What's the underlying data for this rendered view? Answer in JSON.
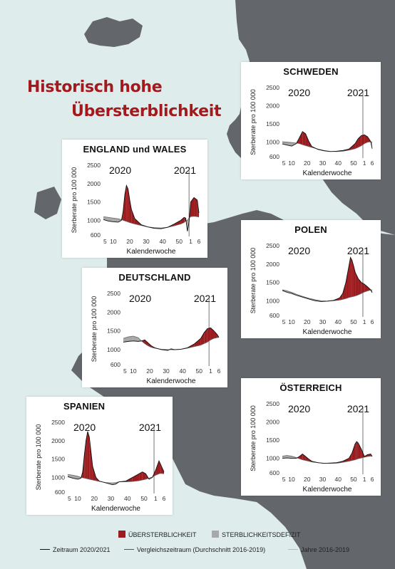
{
  "headline": {
    "line1": "Historisch hohe",
    "line2": "Übersterblichkeit"
  },
  "colors": {
    "excess": "#9b1b1e",
    "deficit": "#a8a8a8",
    "map_land": "#63676b",
    "sea": "#deedeb"
  },
  "axis": {
    "ylabel": "Sterberate pro 100 000",
    "xlabel": "Kalenderwoche",
    "year_left": "2020",
    "year_right": "2021"
  },
  "legend": {
    "excess": "ÜBERSTERBLICHKEIT",
    "deficit": "STERBLICHKEITSDEFIZIT",
    "line_current": "Zeitraum 2020/2021",
    "line_baseline": "Vergleichszeitraum (Durchschnitt 2016-2019)",
    "line_years": "Jahre 2016-2019"
  },
  "chart_data": [
    {
      "type": "area",
      "title": "SCHWEDEN",
      "x_ticks": [
        "5",
        "10",
        "20",
        "30",
        "40",
        "50",
        "1",
        "6"
      ],
      "y_ticks": [
        "2500",
        "2000",
        "1500",
        "1000",
        "600"
      ],
      "ylim": [
        600,
        2500
      ],
      "week_index": [
        1,
        4,
        7,
        10,
        12,
        14,
        16,
        18,
        20,
        24,
        28,
        32,
        36,
        40,
        44,
        48,
        50,
        52,
        54,
        56,
        58,
        59
      ],
      "series": [
        {
          "name": "Zeitraum 2020/2021",
          "values": [
            950,
            920,
            890,
            960,
            1120,
            1290,
            1230,
            1030,
            880,
            800,
            760,
            740,
            750,
            770,
            810,
            960,
            1100,
            1180,
            1200,
            1150,
            1020,
            820
          ]
        },
        {
          "name": "Vergleichszeitraum (Durchschnitt 2016-2019)",
          "values": [
            1010,
            1000,
            990,
            975,
            960,
            930,
            905,
            880,
            855,
            810,
            770,
            745,
            740,
            750,
            780,
            820,
            860,
            900,
            960,
            1000,
            1010,
            1000
          ]
        }
      ]
    },
    {
      "type": "area",
      "title": "ENGLAND und WALES",
      "x_ticks": [
        "5",
        "10",
        "20",
        "30",
        "40",
        "50",
        "1",
        "6"
      ],
      "y_ticks": [
        "2500",
        "2000",
        "1500",
        "1000",
        "600"
      ],
      "ylim": [
        600,
        2500
      ],
      "week_index": [
        1,
        4,
        7,
        10,
        12,
        13,
        14,
        15,
        16,
        17,
        18,
        20,
        24,
        28,
        32,
        36,
        40,
        44,
        48,
        50,
        51,
        52,
        53,
        54,
        56,
        58,
        59
      ],
      "series": [
        {
          "name": "Zeitraum 2020/2021",
          "values": [
            1020,
            980,
            960,
            950,
            1000,
            1250,
            1700,
            1950,
            1850,
            1550,
            1300,
            1050,
            880,
            820,
            780,
            770,
            810,
            900,
            1000,
            1080,
            1060,
            700,
            950,
            1500,
            1620,
            1550,
            1200
          ]
        },
        {
          "name": "Vergleichszeitraum (Durchschnitt 2016-2019)",
          "values": [
            1100,
            1080,
            1060,
            1040,
            1020,
            1000,
            985,
            970,
            955,
            940,
            925,
            900,
            860,
            820,
            800,
            790,
            810,
            850,
            900,
            940,
            980,
            1000,
            1060,
            1100,
            1110,
            1100,
            1090
          ]
        }
      ]
    },
    {
      "type": "area",
      "title": "POLEN",
      "x_ticks": [
        "5",
        "10",
        "20",
        "30",
        "40",
        "50",
        "1",
        "6"
      ],
      "y_ticks": [
        "2500",
        "2000",
        "1500",
        "1000",
        "600"
      ],
      "ylim": [
        600,
        2500
      ],
      "week_index": [
        1,
        4,
        7,
        10,
        14,
        18,
        22,
        26,
        30,
        34,
        38,
        40,
        42,
        44,
        45,
        46,
        47,
        48,
        50,
        52,
        54,
        56,
        58,
        59
      ],
      "series": [
        {
          "name": "Zeitraum 2020/2021",
          "values": [
            1280,
            1230,
            1200,
            1150,
            1100,
            1050,
            1000,
            980,
            990,
            1010,
            1080,
            1200,
            1500,
            1950,
            2180,
            2100,
            1950,
            1780,
            1600,
            1500,
            1450,
            1380,
            1300,
            1220
          ]
        },
        {
          "name": "Vergleichszeitraum (Durchschnitt 2016-2019)",
          "values": [
            1300,
            1270,
            1230,
            1180,
            1120,
            1070,
            1030,
            1000,
            990,
            1000,
            1020,
            1040,
            1060,
            1090,
            1100,
            1110,
            1120,
            1130,
            1160,
            1200,
            1240,
            1270,
            1290,
            1300
          ]
        }
      ]
    },
    {
      "type": "area",
      "title": "DEUTSCHLAND",
      "x_ticks": [
        "5",
        "10",
        "20",
        "30",
        "40",
        "50",
        "1",
        "6"
      ],
      "y_ticks": [
        "2500",
        "2000",
        "1500",
        "1000",
        "600"
      ],
      "ylim": [
        600,
        2500
      ],
      "week_index": [
        1,
        4,
        7,
        10,
        12,
        14,
        16,
        18,
        20,
        24,
        28,
        30,
        32,
        36,
        40,
        44,
        48,
        50,
        52,
        54,
        56,
        58,
        59
      ],
      "series": [
        {
          "name": "Zeitraum 2020/2021",
          "values": [
            1200,
            1220,
            1230,
            1220,
            1230,
            1260,
            1180,
            1100,
            1050,
            1000,
            980,
            1020,
            1000,
            1010,
            1050,
            1150,
            1300,
            1450,
            1560,
            1580,
            1500,
            1400,
            1330
          ]
        },
        {
          "name": "Vergleichszeitraum (Durchschnitt 2016-2019)",
          "values": [
            1300,
            1340,
            1360,
            1320,
            1230,
            1160,
            1100,
            1060,
            1040,
            1010,
            1000,
            1000,
            995,
            1010,
            1040,
            1080,
            1120,
            1160,
            1200,
            1260,
            1300,
            1320,
            1330
          ]
        }
      ]
    },
    {
      "type": "area",
      "title": "ÖSTERREICH",
      "x_ticks": [
        "5",
        "10",
        "20",
        "30",
        "40",
        "50",
        "1",
        "6"
      ],
      "y_ticks": [
        "2500",
        "2000",
        "1500",
        "1000",
        "600"
      ],
      "ylim": [
        600,
        2500
      ],
      "week_index": [
        1,
        4,
        7,
        10,
        12,
        14,
        16,
        18,
        20,
        24,
        28,
        32,
        36,
        40,
        44,
        46,
        48,
        49,
        50,
        52,
        54,
        56,
        58,
        59
      ],
      "series": [
        {
          "name": "Zeitraum 2020/2021",
          "values": [
            1000,
            1010,
            1000,
            1000,
            1050,
            1120,
            1050,
            980,
            920,
            880,
            860,
            870,
            880,
            920,
            1000,
            1150,
            1400,
            1460,
            1420,
            1250,
            1050,
            1100,
            1120,
            1050
          ]
        },
        {
          "name": "Vergleichszeitraum (Durchschnitt 2016-2019)",
          "values": [
            1060,
            1080,
            1060,
            1020,
            990,
            960,
            940,
            920,
            900,
            880,
            865,
            860,
            865,
            890,
            920,
            940,
            960,
            975,
            990,
            1010,
            1030,
            1050,
            1060,
            1060
          ]
        }
      ]
    },
    {
      "type": "area",
      "title": "SPANIEN",
      "x_ticks": [
        "5",
        "10",
        "20",
        "30",
        "40",
        "50",
        "1",
        "6"
      ],
      "y_ticks": [
        "2500",
        "2000",
        "1500",
        "1000",
        "600"
      ],
      "ylim": [
        600,
        2500
      ],
      "week_index": [
        1,
        4,
        7,
        9,
        10,
        11,
        12,
        13,
        14,
        15,
        16,
        18,
        20,
        24,
        28,
        30,
        32,
        36,
        40,
        44,
        46,
        48,
        50,
        52,
        54,
        56,
        57,
        59
      ],
      "series": [
        {
          "name": "Zeitraum 2020/2021",
          "values": [
            1020,
            980,
            950,
            980,
            1150,
            1600,
            2000,
            2250,
            2100,
            1700,
            1300,
            1000,
            900,
            850,
            800,
            820,
            880,
            900,
            1000,
            1100,
            1150,
            1100,
            950,
            1000,
            1200,
            1450,
            1350,
            1150
          ]
        },
        {
          "name": "Vergleichszeitraum (Durchschnitt 2016-2019)",
          "values": [
            1080,
            1060,
            1030,
            1000,
            990,
            980,
            970,
            960,
            950,
            940,
            930,
            910,
            890,
            860,
            850,
            860,
            880,
            880,
            890,
            910,
            930,
            950,
            980,
            1010,
            1060,
            1100,
            1110,
            1100
          ]
        }
      ]
    }
  ]
}
